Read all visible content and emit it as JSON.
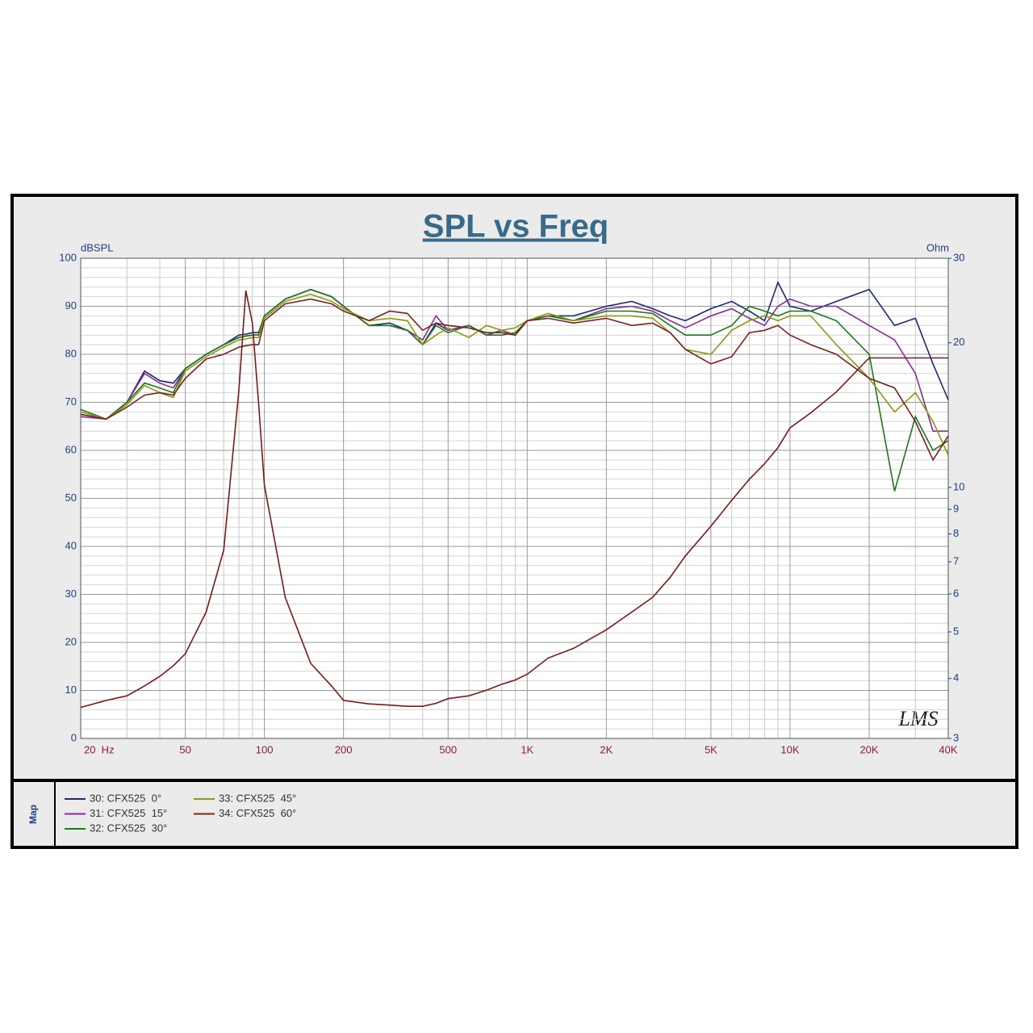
{
  "chart_data": {
    "type": "line",
    "title": "SPL vs Freq",
    "ylabel": "dBSPL",
    "y2label": "Ohm",
    "legend_title": "Map",
    "annotation": "LMS",
    "xlog": true,
    "y2log": true,
    "grid": true,
    "xlim": [
      20,
      40000
    ],
    "xticks": [
      {
        "value": 20,
        "label": "20  Hz"
      },
      50,
      100,
      200,
      500,
      {
        "value": 1000,
        "label": "1K"
      },
      {
        "value": 2000,
        "label": "2K"
      },
      {
        "value": 5000,
        "label": "5K"
      },
      {
        "value": 10000,
        "label": "10K"
      },
      {
        "value": 20000,
        "label": "20K"
      },
      {
        "value": 40000,
        "label": "40K"
      }
    ],
    "xgrid": [
      30,
      40,
      60,
      70,
      80,
      90,
      300,
      400,
      600,
      700,
      800,
      900,
      3000,
      4000,
      6000,
      7000,
      8000,
      9000,
      30000
    ],
    "ylim": [
      0,
      100
    ],
    "yticks": [
      0,
      10,
      20,
      30,
      40,
      50,
      60,
      70,
      80,
      90,
      100
    ],
    "ygrid": [
      2,
      4,
      6,
      8,
      12,
      14,
      16,
      18,
      22,
      24,
      26,
      28,
      32,
      34,
      36,
      38,
      42,
      44,
      46,
      48,
      52,
      54,
      56,
      58,
      62,
      64,
      66,
      68,
      72,
      74,
      76,
      78,
      82,
      84,
      86,
      88,
      92,
      94,
      96,
      98
    ],
    "y2lim": [
      3,
      30
    ],
    "y2ticks": [
      3,
      4,
      5,
      6,
      7,
      8,
      9,
      10,
      20,
      30
    ],
    "x": [
      20,
      25,
      30,
      35,
      40,
      45,
      50,
      60,
      70,
      80,
      85,
      90,
      95,
      100,
      120,
      150,
      180,
      200,
      250,
      300,
      350,
      400,
      450,
      500,
      600,
      700,
      800,
      900,
      1000,
      1200,
      1500,
      2000,
      2500,
      3000,
      3500,
      4000,
      5000,
      6000,
      7000,
      8000,
      9000,
      10000,
      12000,
      15000,
      20000,
      25000,
      30000,
      35000,
      40000
    ],
    "series": [
      {
        "name": "30: CFX525  0°",
        "color": "#1c2a78",
        "values": [
          67.5,
          66.5,
          70,
          76.5,
          74.5,
          74,
          77,
          80,
          82,
          84,
          84.2,
          84.5,
          84.5,
          88,
          91.5,
          93.5,
          92,
          90,
          86,
          86.5,
          85,
          82,
          86.5,
          85,
          86,
          84,
          85,
          84,
          87,
          88,
          88,
          90,
          91,
          89.5,
          88,
          87,
          89.5,
          91,
          89,
          87,
          95,
          90,
          89,
          91,
          93.5,
          86,
          87.5,
          78,
          70.5
        ]
      },
      {
        "name": "31: CFX525  15°",
        "color": "#8a2a98",
        "values": [
          67,
          66.5,
          70,
          76,
          74,
          73,
          77,
          80,
          82,
          83.5,
          83.8,
          84,
          84,
          88,
          91.5,
          93.5,
          92,
          90,
          86,
          86,
          85,
          83,
          88,
          85,
          86,
          84,
          85,
          84,
          87,
          88,
          87,
          89.5,
          90,
          89,
          87,
          85.5,
          88,
          89.5,
          87.5,
          86,
          90,
          91.5,
          90,
          90,
          86,
          83,
          76,
          64,
          64
        ]
      },
      {
        "name": "32: CFX525  30°",
        "color": "#1a7a1a",
        "values": [
          68.5,
          66.5,
          70,
          74,
          73,
          72,
          77,
          80,
          82,
          83.5,
          83.8,
          84,
          84,
          88,
          91.5,
          93.5,
          92,
          90,
          86,
          86,
          85,
          82,
          86,
          84.5,
          86,
          84,
          84,
          84.5,
          87,
          88,
          87,
          89,
          89,
          88.5,
          86,
          84,
          84,
          86,
          90,
          89,
          88,
          89,
          89,
          87,
          80,
          51.5,
          67,
          60,
          62
        ]
      },
      {
        "name": "33: CFX525  45°",
        "color": "#8a9a10",
        "values": [
          68,
          66.5,
          69.5,
          73.5,
          72,
          71,
          76.5,
          79.5,
          81.5,
          83,
          83.2,
          83.5,
          83.5,
          87.5,
          91,
          92.5,
          91,
          89.5,
          87,
          87.5,
          87,
          82,
          84,
          85.5,
          83.5,
          86,
          85,
          85.5,
          87,
          88.5,
          87,
          88,
          88,
          87.5,
          84.5,
          81,
          80,
          85,
          87,
          88,
          87,
          88,
          88,
          82,
          75,
          68,
          72,
          66,
          59
        ]
      },
      {
        "name": "34: CFX525  60°",
        "color": "#7a2222",
        "values": [
          67.5,
          66.5,
          69,
          71.5,
          72,
          71.5,
          75,
          79,
          80,
          81.5,
          81.8,
          82,
          82,
          87,
          90.5,
          91.5,
          90.5,
          89,
          87,
          89,
          88.5,
          85,
          86.5,
          86,
          85.5,
          84.5,
          84.5,
          84,
          87,
          87.5,
          86.5,
          87.5,
          86,
          86.5,
          84.5,
          81,
          78,
          79.5,
          84.5,
          85,
          86,
          84,
          82,
          80,
          75,
          73,
          66,
          58,
          63
        ]
      },
      {
        "color": "#7a1a1a",
        "axis": "y2",
        "values": [
          3.48,
          3.6,
          3.68,
          3.86,
          4.04,
          4.25,
          4.5,
          5.5,
          7.4,
          16,
          25.7,
          22,
          15,
          10.1,
          5.9,
          4.3,
          3.86,
          3.6,
          3.54,
          3.52,
          3.5,
          3.5,
          3.55,
          3.63,
          3.68,
          3.78,
          3.89,
          3.97,
          4.08,
          4.41,
          4.62,
          5.05,
          5.5,
          5.9,
          6.5,
          7.2,
          8.3,
          9.4,
          10.4,
          11.2,
          12.1,
          13.3,
          14.3,
          15.8,
          18.6,
          18.6,
          18.6,
          18.6,
          18.6
        ]
      }
    ]
  }
}
